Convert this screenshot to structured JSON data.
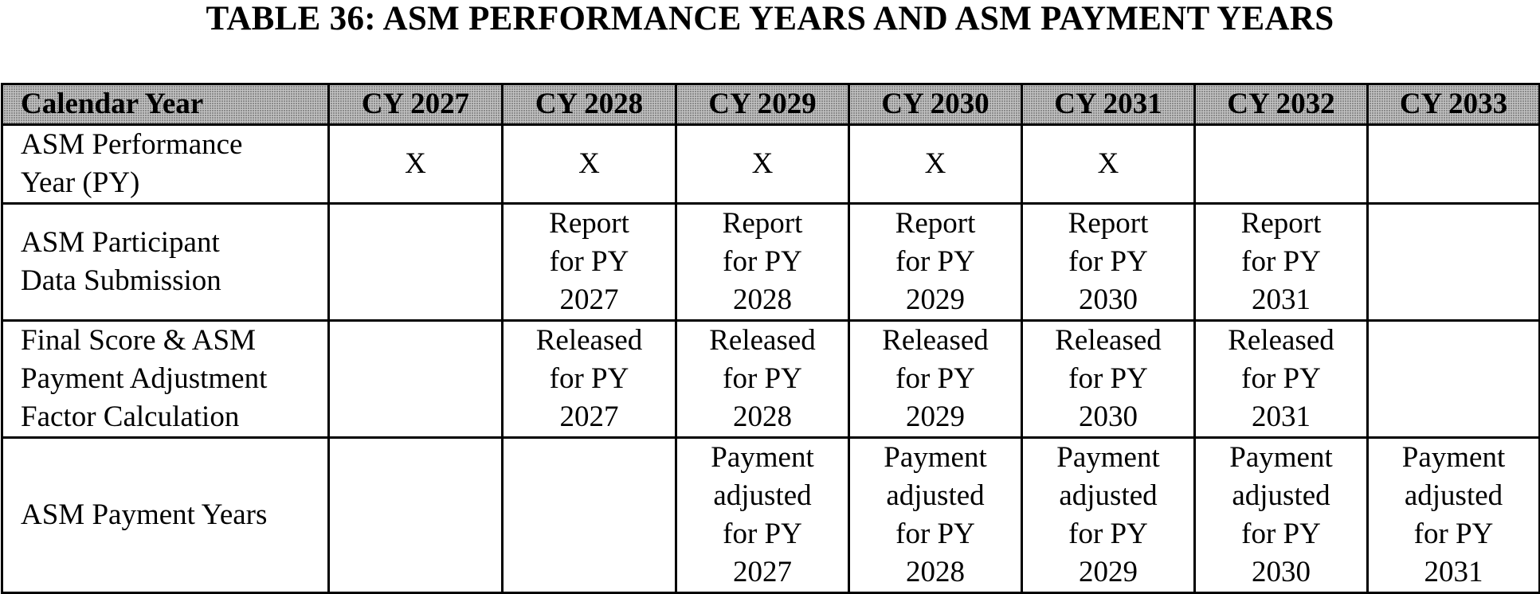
{
  "title": "TABLE 36: ASM PERFORMANCE YEARS AND ASM PAYMENT YEARS",
  "table": {
    "headers": [
      "Calendar Year",
      "CY 2027",
      "CY 2028",
      "CY 2029",
      "CY 2030",
      "CY 2031",
      "CY 2032",
      "CY 2033"
    ],
    "rows": [
      {
        "label": "ASM Performance Year (PY)",
        "cells": [
          "X",
          "X",
          "X",
          "X",
          "X",
          "",
          ""
        ]
      },
      {
        "label": "ASM Participant Data Submission",
        "cells": [
          "",
          "Report for PY 2027",
          "Report for PY 2028",
          "Report for PY 2029",
          "Report for PY 2030",
          "Report for PY 2031",
          ""
        ]
      },
      {
        "label": "Final Score & ASM Payment Adjustment Factor Calculation",
        "cells": [
          "",
          "Released for PY 2027",
          "Released for PY 2028",
          "Released for PY 2029",
          "Released for PY 2030",
          "Released for PY 2031",
          ""
        ]
      },
      {
        "label": "ASM Payment Years",
        "cells": [
          "",
          "",
          "Payment adjusted for PY 2027",
          "Payment adjusted for PY 2028",
          "Payment adjusted for PY 2029",
          "Payment adjusted for PY 2030",
          "Payment adjusted for PY 2031"
        ]
      }
    ]
  }
}
